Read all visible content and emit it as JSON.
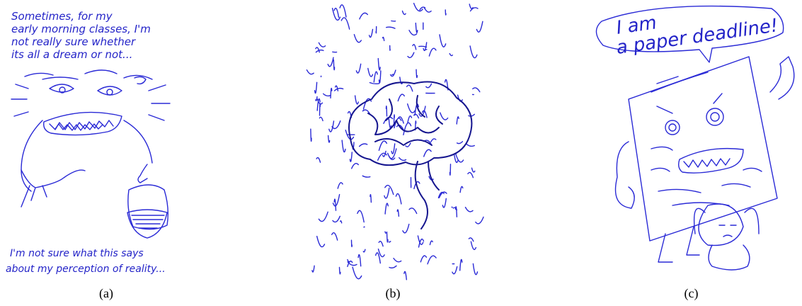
{
  "panels": [
    {
      "caption": "(a)",
      "handwriting_top": [
        "Sometimes, for my",
        "early morning classes, I'm",
        "not really sure whether",
        "its all a dream or not..."
      ],
      "handwriting_bottom": [
        "I'm not sure what this says",
        "about my perception of reality..."
      ],
      "ink_color": "#2a2ad6"
    },
    {
      "caption": "(b)",
      "ink_color": "#16168f"
    },
    {
      "caption": "(c)",
      "speech_lines": [
        "I am",
        "a paper deadline!"
      ],
      "ink_color": "#2a2ad6"
    }
  ]
}
